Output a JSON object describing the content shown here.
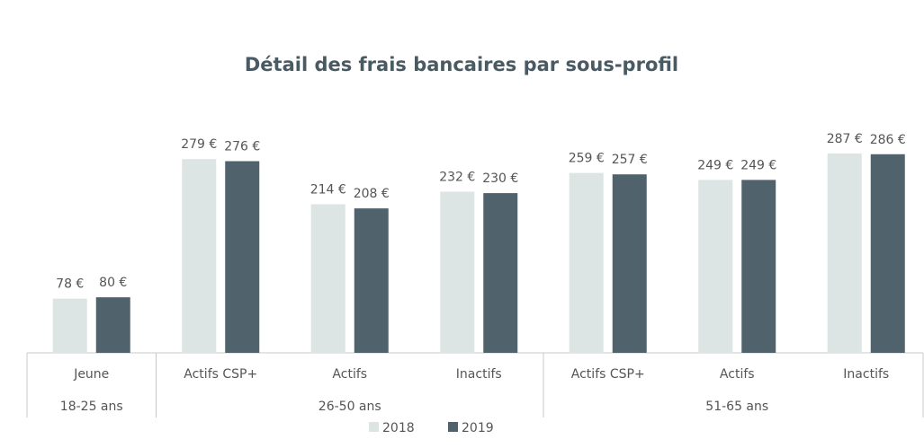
{
  "chart_data": {
    "type": "bar",
    "title": "Détail des frais bancaires par sous-profil",
    "category_groups": [
      {
        "label": "18-25 ans",
        "categories": [
          "Jeune"
        ]
      },
      {
        "label": "26-50 ans",
        "categories": [
          "Actifs CSP+",
          "Actifs",
          "Inactifs"
        ]
      },
      {
        "label": "51-65 ans",
        "categories": [
          "Actifs CSP+",
          "Actifs",
          "Inactifs"
        ]
      }
    ],
    "series": [
      {
        "name": "2018",
        "color": "#dde4e4",
        "values": [
          78,
          279,
          214,
          232,
          259,
          249,
          287
        ],
        "value_labels": [
          "78 €",
          "279 €",
          "214 €",
          "232 €",
          "259 €",
          "249 €",
          "287 €"
        ]
      },
      {
        "name": "2019",
        "color": "#50626b",
        "values": [
          80,
          276,
          208,
          230,
          257,
          249,
          286
        ],
        "value_labels": [
          "80 €",
          "276 €",
          "208 €",
          "230 €",
          "257 €",
          "249 €",
          "286 €"
        ]
      }
    ],
    "legend": "bottom"
  }
}
